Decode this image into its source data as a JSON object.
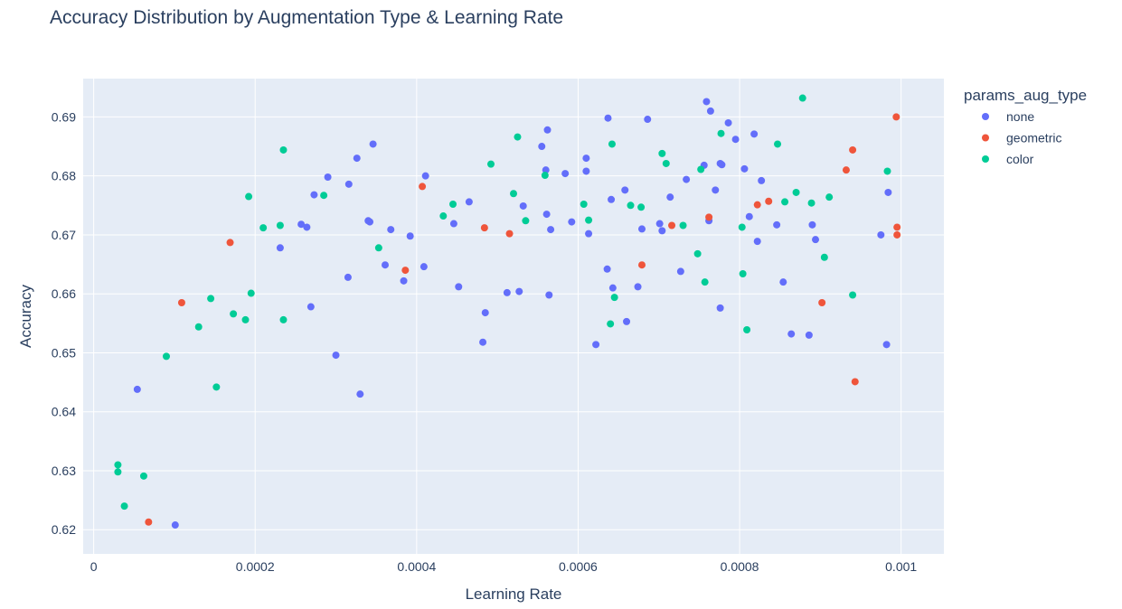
{
  "chart_data": {
    "type": "scatter",
    "title": "Accuracy Distribution by Augmentation Type & Learning Rate",
    "xlabel": "Learning Rate",
    "ylabel": "Accuracy",
    "xlim": [
      -1.3e-05,
      0.001053
    ],
    "ylim": [
      0.6159,
      0.6965
    ],
    "x_ticks": [
      0,
      0.0002,
      0.0004,
      0.0006,
      0.0008,
      0.001
    ],
    "x_tick_labels": [
      "0",
      "0.0002",
      "0.0004",
      "0.0006",
      "0.0008",
      "0.001"
    ],
    "y_ticks": [
      0.62,
      0.63,
      0.64,
      0.65,
      0.66,
      0.67,
      0.68,
      0.69
    ],
    "y_tick_labels": [
      "0.62",
      "0.63",
      "0.64",
      "0.65",
      "0.66",
      "0.67",
      "0.68",
      "0.69"
    ],
    "grid": true,
    "legend_title": "params_aug_type",
    "legend_position": "right",
    "series": [
      {
        "name": "none",
        "color": "#636efa",
        "points": [
          [
            5.4e-05,
            0.6438
          ],
          [
            0.000101,
            0.6208
          ],
          [
            0.000231,
            0.6678
          ],
          [
            0.000257,
            0.6718
          ],
          [
            0.000264,
            0.6713
          ],
          [
            0.000269,
            0.6578
          ],
          [
            0.000273,
            0.6768
          ],
          [
            0.00029,
            0.6798
          ],
          [
            0.0003,
            0.6496
          ],
          [
            0.000315,
            0.6628
          ],
          [
            0.000316,
            0.6786
          ],
          [
            0.000326,
            0.683
          ],
          [
            0.00033,
            0.643
          ],
          [
            0.00034,
            0.6724
          ],
          [
            0.000342,
            0.6722
          ],
          [
            0.000346,
            0.6854
          ],
          [
            0.000361,
            0.6649
          ],
          [
            0.000368,
            0.6709
          ],
          [
            0.000384,
            0.6622
          ],
          [
            0.000392,
            0.6698
          ],
          [
            0.000409,
            0.6646
          ],
          [
            0.000411,
            0.68
          ],
          [
            0.000446,
            0.6719
          ],
          [
            0.000452,
            0.6612
          ],
          [
            0.000465,
            0.6756
          ],
          [
            0.000482,
            0.6518
          ],
          [
            0.000485,
            0.6568
          ],
          [
            0.000512,
            0.6602
          ],
          [
            0.000527,
            0.6604
          ],
          [
            0.000532,
            0.6749
          ],
          [
            0.000555,
            0.685
          ],
          [
            0.00056,
            0.681
          ],
          [
            0.000561,
            0.6735
          ],
          [
            0.000562,
            0.6878
          ],
          [
            0.000564,
            0.6598
          ],
          [
            0.000566,
            0.6709
          ],
          [
            0.000584,
            0.6804
          ],
          [
            0.000592,
            0.6722
          ],
          [
            0.00061,
            0.6808
          ],
          [
            0.00061,
            0.683
          ],
          [
            0.000613,
            0.6702
          ],
          [
            0.000622,
            0.6514
          ],
          [
            0.000636,
            0.6642
          ],
          [
            0.000637,
            0.6898
          ],
          [
            0.000641,
            0.676
          ],
          [
            0.000643,
            0.661
          ],
          [
            0.000658,
            0.6776
          ],
          [
            0.00066,
            0.6553
          ],
          [
            0.000674,
            0.6612
          ],
          [
            0.000679,
            0.671
          ],
          [
            0.000686,
            0.6896
          ],
          [
            0.000701,
            0.6719
          ],
          [
            0.000704,
            0.6707
          ],
          [
            0.000714,
            0.6764
          ],
          [
            0.000727,
            0.6638
          ],
          [
            0.000734,
            0.6794
          ],
          [
            0.000756,
            0.6818
          ],
          [
            0.000759,
            0.6926
          ],
          [
            0.000762,
            0.6724
          ],
          [
            0.000764,
            0.691
          ],
          [
            0.00077,
            0.6776
          ],
          [
            0.000776,
            0.6576
          ],
          [
            0.000776,
            0.6821
          ],
          [
            0.000778,
            0.6819
          ],
          [
            0.000786,
            0.689
          ],
          [
            0.000795,
            0.6862
          ],
          [
            0.000806,
            0.6812
          ],
          [
            0.000812,
            0.6731
          ],
          [
            0.000818,
            0.6871
          ],
          [
            0.000822,
            0.6689
          ],
          [
            0.000827,
            0.6792
          ],
          [
            0.000846,
            0.6717
          ],
          [
            0.000854,
            0.662
          ],
          [
            0.000864,
            0.6532
          ],
          [
            0.000886,
            0.653
          ],
          [
            0.00089,
            0.6717
          ],
          [
            0.000894,
            0.6692
          ],
          [
            0.000975,
            0.67
          ],
          [
            0.000982,
            0.6514
          ],
          [
            0.000984,
            0.6772
          ]
        ]
      },
      {
        "name": "geometric",
        "color": "#ef553b",
        "points": [
          [
            6.8e-05,
            0.6213
          ],
          [
            0.000109,
            0.6585
          ],
          [
            0.000169,
            0.6687
          ],
          [
            0.000386,
            0.664
          ],
          [
            0.000407,
            0.6782
          ],
          [
            0.000484,
            0.6712
          ],
          [
            0.000515,
            0.6702
          ],
          [
            0.000679,
            0.6649
          ],
          [
            0.000716,
            0.6716
          ],
          [
            0.000762,
            0.673
          ],
          [
            0.000822,
            0.6751
          ],
          [
            0.000836,
            0.6757
          ],
          [
            0.000902,
            0.6585
          ],
          [
            0.000932,
            0.681
          ],
          [
            0.00094,
            0.6844
          ],
          [
            0.000943,
            0.6451
          ],
          [
            0.000994,
            0.69
          ],
          [
            0.000995,
            0.6713
          ],
          [
            0.000995,
            0.67
          ]
        ]
      },
      {
        "name": "color",
        "color": "#00cc96",
        "points": [
          [
            3e-05,
            0.631
          ],
          [
            3e-05,
            0.6298
          ],
          [
            3.8e-05,
            0.624
          ],
          [
            6.2e-05,
            0.6291
          ],
          [
            9e-05,
            0.6494
          ],
          [
            0.00013,
            0.6544
          ],
          [
            0.000145,
            0.6592
          ],
          [
            0.000152,
            0.6442
          ],
          [
            0.000173,
            0.6566
          ],
          [
            0.000188,
            0.6556
          ],
          [
            0.000192,
            0.6765
          ],
          [
            0.000195,
            0.6601
          ],
          [
            0.00021,
            0.6712
          ],
          [
            0.000231,
            0.6716
          ],
          [
            0.000235,
            0.6844
          ],
          [
            0.000235,
            0.6556
          ],
          [
            0.000285,
            0.6767
          ],
          [
            0.000353,
            0.6678
          ],
          [
            0.000433,
            0.6732
          ],
          [
            0.000445,
            0.6752
          ],
          [
            0.000492,
            0.682
          ],
          [
            0.00052,
            0.677
          ],
          [
            0.000525,
            0.6866
          ],
          [
            0.000535,
            0.6724
          ],
          [
            0.000559,
            0.6801
          ],
          [
            0.000607,
            0.6752
          ],
          [
            0.000613,
            0.6725
          ],
          [
            0.00064,
            0.6549
          ],
          [
            0.000642,
            0.6854
          ],
          [
            0.000645,
            0.6594
          ],
          [
            0.000665,
            0.675
          ],
          [
            0.000678,
            0.6747
          ],
          [
            0.000704,
            0.6838
          ],
          [
            0.000709,
            0.6821
          ],
          [
            0.00073,
            0.6716
          ],
          [
            0.000748,
            0.6668
          ],
          [
            0.000752,
            0.6811
          ],
          [
            0.000757,
            0.662
          ],
          [
            0.000777,
            0.6872
          ],
          [
            0.000803,
            0.6713
          ],
          [
            0.000804,
            0.6634
          ],
          [
            0.000809,
            0.6539
          ],
          [
            0.000847,
            0.6854
          ],
          [
            0.000856,
            0.6756
          ],
          [
            0.00087,
            0.6772
          ],
          [
            0.000878,
            0.6932
          ],
          [
            0.000889,
            0.6754
          ],
          [
            0.000905,
            0.6662
          ],
          [
            0.000911,
            0.6764
          ],
          [
            0.00094,
            0.6598
          ],
          [
            0.000983,
            0.6808
          ]
        ]
      }
    ]
  }
}
